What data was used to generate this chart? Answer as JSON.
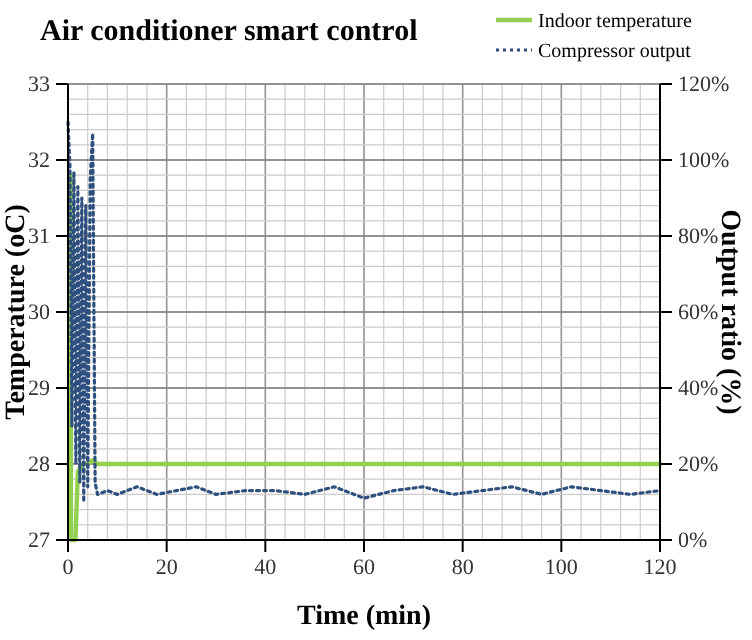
{
  "chart_data": {
    "type": "line",
    "title": "Air conditioner smart control",
    "xlabel": "Time (min)",
    "ylabel": "Temperature (oC)",
    "y2label": "Output ratio (%)",
    "xlim": [
      0,
      120
    ],
    "xticks": [
      0,
      20,
      40,
      60,
      80,
      100,
      120
    ],
    "ylim": [
      27,
      33
    ],
    "yticks": [
      27,
      28,
      29,
      30,
      31,
      32,
      33
    ],
    "y2lim": [
      0,
      120
    ],
    "y2ticks": [
      {
        "value": 0,
        "label": "0%"
      },
      {
        "value": 20,
        "label": "20%"
      },
      {
        "value": 40,
        "label": "40%"
      },
      {
        "value": 60,
        "label": "60%"
      },
      {
        "value": 80,
        "label": "80%"
      },
      {
        "value": 100,
        "label": "100%"
      },
      {
        "value": 120,
        "label": "120%"
      }
    ],
    "grid": true,
    "legend": "top right",
    "marker": "none",
    "series": [
      {
        "name": "Indoor temperature",
        "color": "#92d050",
        "line_style": "solid",
        "x": [
          0.5,
          0.6,
          1.5,
          2,
          3,
          4,
          5,
          6,
          8,
          120
        ],
        "values": [
          31.8,
          27,
          27,
          27.9,
          28,
          28,
          28.05,
          28,
          28,
          28
        ]
      },
      {
        "name": "Compressor output",
        "color": "#2f4f7f",
        "line_style": "dotted",
        "axis": "y2",
        "x": [
          0,
          0.4,
          0.8,
          1.2,
          1.6,
          2,
          2.4,
          2.8,
          3.2,
          3.6,
          4,
          4.5,
          5,
          5.5,
          6,
          8,
          10,
          14,
          18,
          22,
          26,
          30,
          36,
          42,
          48,
          54,
          60,
          66,
          72,
          78,
          84,
          90,
          96,
          102,
          108,
          114,
          120
        ],
        "values": [
          110,
          98,
          30,
          97,
          20,
          93,
          15,
          90,
          10,
          88,
          14,
          95,
          107,
          15,
          12,
          13,
          12,
          14,
          12,
          13,
          14,
          12,
          13,
          13,
          12,
          14,
          11,
          13,
          14,
          12,
          13,
          14,
          12,
          14,
          13,
          12,
          13
        ]
      }
    ]
  }
}
